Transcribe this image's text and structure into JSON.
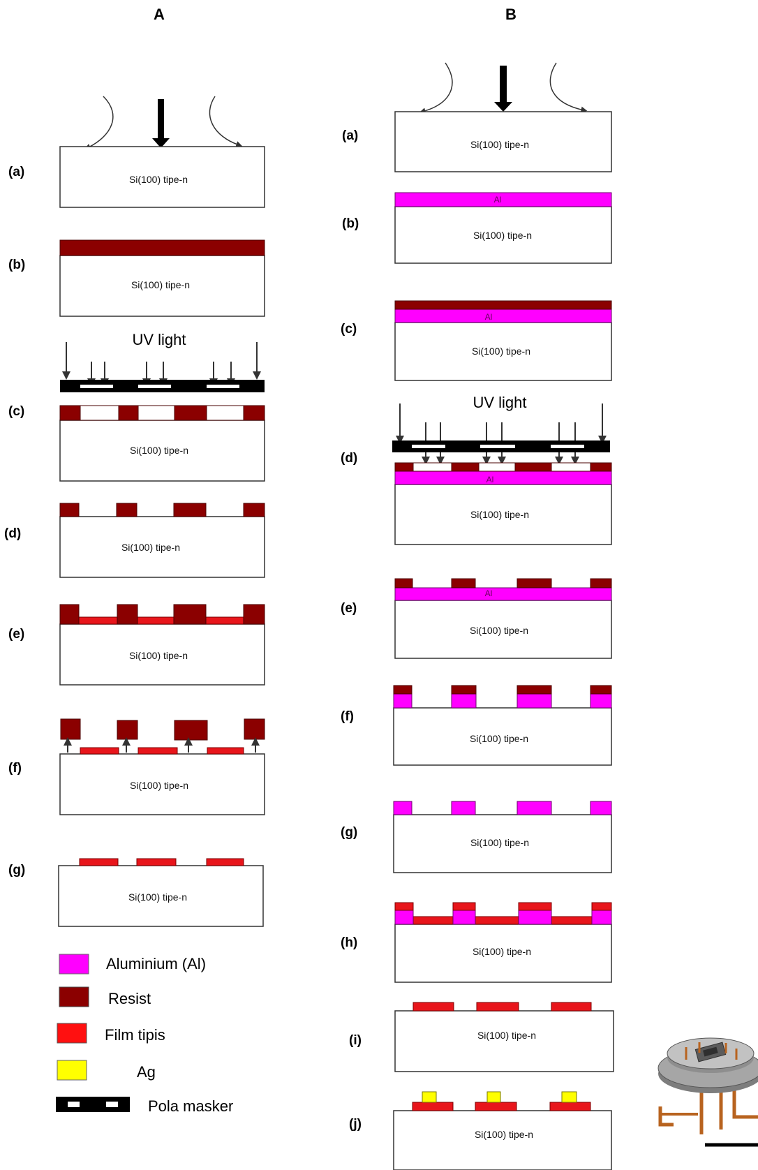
{
  "columns": {
    "a": "A",
    "b": "B"
  },
  "substrate_label": "Si(100)  tipe-n",
  "al_label": "Al",
  "uv_label": "UV light",
  "steps": {
    "a": [
      "(a)",
      "(b)",
      "(c)",
      "(d)",
      "(e)",
      "(f)",
      "(g)"
    ],
    "b": [
      "(a)",
      "(b)",
      "(c)",
      "(d)",
      "(e)",
      "(f)",
      "(g)",
      "(h)",
      "(i)",
      "(j)"
    ]
  },
  "legend": [
    {
      "label": "Aluminium (Al)",
      "color": "#ff00ff"
    },
    {
      "label": "Resist",
      "color": "#8b0000"
    },
    {
      "label": "Film tipis",
      "color": "#e8151b"
    },
    {
      "label": "Ag",
      "color": "#ffff00"
    },
    {
      "label": "Pola masker",
      "color": "#000000"
    }
  ],
  "colors": {
    "aluminium": "#ff00ff",
    "resist": "#8b0000",
    "film": "#e8151b",
    "ag": "#ffff00",
    "mask": "#000000"
  },
  "icons": [
    "heating-arrow-icon",
    "deposition-arrow-icon",
    "uv-arrow-icon",
    "sensor-package-icon"
  ]
}
